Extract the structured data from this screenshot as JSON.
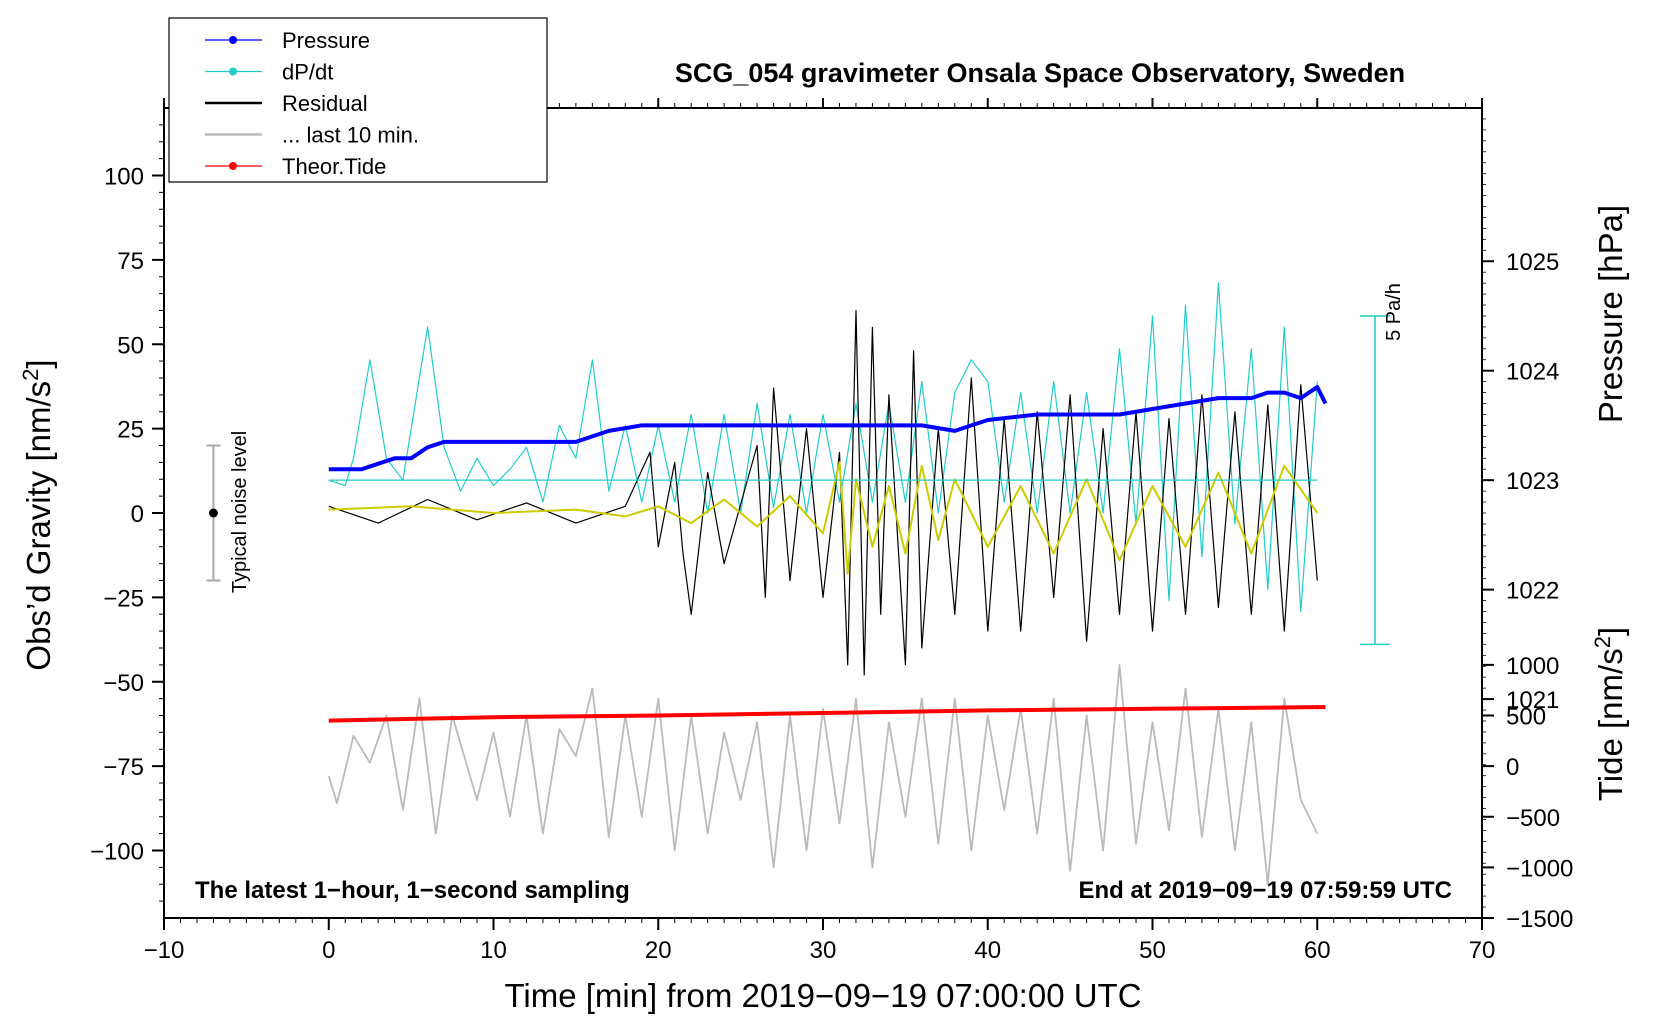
{
  "chart_data": {
    "type": "line",
    "title": "SCG_054 gravimeter Onsala Space Observatory, Sweden",
    "xlabel": "Time [min] from 2019−09−19 07:00:00 UTC",
    "ylabel_left_main": "Obs’d Gravity [nm/s",
    "ylabel_left_sup": "2",
    "ylabel_left_tail": "]",
    "ylabel_right_top": "Pressure [hPa]",
    "ylabel_right_bottom_main": "Tide [nm/s",
    "ylabel_right_bottom_sup": "2",
    "ylabel_right_bottom_tail": "]",
    "xlim": [
      -10,
      70
    ],
    "ylim": [
      -120,
      120
    ],
    "pressure_lim": [
      1019.0,
      1026.4
    ],
    "tide_lim": [
      -1500,
      6500
    ],
    "x_ticks": [
      -10,
      0,
      10,
      20,
      30,
      40,
      50,
      60,
      70
    ],
    "x_tick_labels": [
      "−10",
      "0",
      "10",
      "20",
      "30",
      "40",
      "50",
      "60",
      "70"
    ],
    "y_ticks": [
      100,
      75,
      50,
      25,
      0,
      -25,
      -50,
      -75,
      -100
    ],
    "y_tick_labels": [
      "100",
      "75",
      "50",
      "25",
      "0",
      "−25",
      "−50",
      "−75",
      "−100"
    ],
    "pressure_ticks": [
      1025,
      1024,
      1023,
      1022,
      1021
    ],
    "pressure_tick_labels": [
      "1025",
      "1024",
      "1023",
      "1022",
      "1021"
    ],
    "tide_ticks": [
      1000,
      500,
      0,
      -500,
      -1000,
      -1500
    ],
    "tide_tick_labels": [
      "1000",
      "500",
      "0",
      "−500",
      "−1000",
      "−1500"
    ],
    "legend": [
      {
        "label": "Pressure",
        "color": "#0000ff",
        "marker": true
      },
      {
        "label": "dP/dt",
        "color": "#22cccc",
        "marker": true
      },
      {
        "label": "Residual",
        "color": "#000000",
        "marker": false
      },
      {
        "label": "... last 10 min.",
        "color": "#bbbbbb",
        "marker": false
      },
      {
        "label": "Theor.Tide",
        "color": "#ff0000",
        "marker": true
      }
    ],
    "note_left": "The latest 1−hour, 1−second sampling",
    "note_right": "End at 2019−09−19 07:59:59 UTC",
    "noise_label": "Typical noise level",
    "noise_bar": {
      "x": -7,
      "center": 0,
      "half_range": 20
    },
    "dpdt_scale_label": "5 Pa/h",
    "dpdt_scale_range_hpa": [
      1021.5,
      1024.5
    ],
    "dpdt_baseline_hpa": 1023.0,
    "series": [
      {
        "name": "Pressure",
        "unit": "hPa",
        "color": "#0000ff",
        "x": [
          0,
          2,
          4,
          5,
          6,
          7,
          9,
          10,
          12,
          15,
          17,
          19,
          22,
          25,
          27,
          30,
          33,
          36,
          38,
          40,
          43,
          45,
          48,
          50,
          52,
          54,
          56,
          57,
          58,
          59,
          60,
          60.5
        ],
        "y": [
          1023.1,
          1023.1,
          1023.2,
          1023.2,
          1023.3,
          1023.35,
          1023.35,
          1023.35,
          1023.35,
          1023.35,
          1023.45,
          1023.5,
          1023.5,
          1023.5,
          1023.5,
          1023.5,
          1023.5,
          1023.5,
          1023.45,
          1023.55,
          1023.6,
          1023.6,
          1023.6,
          1023.65,
          1023.7,
          1023.75,
          1023.75,
          1023.8,
          1023.8,
          1023.75,
          1023.85,
          1023.7
        ]
      },
      {
        "name": "dP/dt",
        "unit": "hPa-scaled",
        "color": "#22cccc",
        "x": [
          0,
          1,
          1.5,
          2.5,
          3.5,
          4.5,
          6,
          7,
          8,
          9,
          10,
          11,
          12,
          13,
          14,
          15,
          16,
          17,
          18,
          19,
          20,
          21,
          22,
          23,
          24,
          25,
          26,
          27,
          28,
          29,
          30,
          31,
          32,
          33,
          34,
          35,
          36,
          37,
          38,
          39,
          40,
          41,
          42,
          43,
          44,
          45,
          46,
          47,
          48,
          49,
          50,
          51,
          52,
          53,
          54,
          55,
          56,
          57,
          58,
          59,
          60
        ],
        "y": [
          1023.0,
          1022.95,
          1023.2,
          1024.1,
          1023.2,
          1023.0,
          1024.4,
          1023.3,
          1022.9,
          1023.2,
          1022.95,
          1023.1,
          1023.3,
          1022.8,
          1023.5,
          1023.2,
          1024.1,
          1022.9,
          1023.5,
          1022.8,
          1023.5,
          1022.8,
          1023.6,
          1022.7,
          1023.6,
          1022.7,
          1023.7,
          1022.75,
          1023.6,
          1022.7,
          1023.6,
          1022.8,
          1023.7,
          1022.8,
          1023.7,
          1022.8,
          1023.9,
          1022.7,
          1023.8,
          1024.1,
          1023.9,
          1022.8,
          1023.8,
          1022.7,
          1023.9,
          1022.7,
          1023.8,
          1022.7,
          1024.2,
          1022.6,
          1024.5,
          1021.9,
          1024.6,
          1022.3,
          1024.8,
          1022.6,
          1024.2,
          1022.0,
          1024.4,
          1021.8,
          1023.9
        ]
      },
      {
        "name": "Residual",
        "unit": "nm/s2",
        "color": "#000000",
        "x": [
          0,
          3,
          6,
          9,
          12,
          15,
          18,
          19.5,
          20,
          21,
          21.5,
          22,
          23,
          24,
          26,
          26.5,
          27,
          28,
          29,
          30,
          31,
          31.5,
          32,
          32.5,
          33,
          33.5,
          34,
          35,
          35.5,
          36,
          37,
          38,
          39,
          40,
          41,
          42,
          43,
          44,
          45,
          46,
          47,
          48,
          49,
          50,
          51,
          52,
          53,
          54,
          55,
          56,
          57,
          58,
          59,
          60
        ],
        "y": [
          2,
          -3,
          4,
          -2,
          3,
          -3,
          2,
          18,
          -10,
          15,
          -12,
          -30,
          12,
          -15,
          20,
          -25,
          37,
          -20,
          25,
          -25,
          18,
          -45,
          60,
          -48,
          55,
          -30,
          35,
          -45,
          48,
          -40,
          25,
          -30,
          40,
          -35,
          28,
          -35,
          30,
          -25,
          35,
          -38,
          25,
          -30,
          30,
          -35,
          28,
          -30,
          35,
          -28,
          30,
          -30,
          32,
          -35,
          38,
          -20
        ]
      },
      {
        "name": "... last 10 min.",
        "unit": "nm/s2",
        "color": "#bbbbbb",
        "x": [
          0,
          0.5,
          1.5,
          2.5,
          3.5,
          4.5,
          5.5,
          6.5,
          7.5,
          9,
          10,
          11,
          12,
          13,
          14,
          15,
          16,
          17,
          18,
          19,
          20,
          21,
          22,
          23,
          24,
          25,
          26,
          27,
          28,
          29,
          30,
          31,
          32,
          33,
          34,
          35,
          36,
          37,
          38,
          39,
          40,
          41,
          42,
          43,
          44,
          45,
          46,
          47,
          48,
          49,
          50,
          51,
          52,
          53,
          54,
          55,
          56,
          57,
          58,
          59,
          60
        ],
        "y": [
          -78,
          -86,
          -66,
          -74,
          -60,
          -88,
          -55,
          -95,
          -60,
          -85,
          -65,
          -90,
          -60,
          -95,
          -64,
          -72,
          -52,
          -96,
          -60,
          -90,
          -55,
          -100,
          -60,
          -95,
          -65,
          -85,
          -62,
          -105,
          -60,
          -100,
          -58,
          -92,
          -55,
          -105,
          -62,
          -90,
          -55,
          -98,
          -55,
          -100,
          -60,
          -88,
          -58,
          -95,
          -55,
          -106,
          -60,
          -100,
          -45,
          -98,
          -62,
          -94,
          -52,
          -96,
          -58,
          -100,
          -62,
          -110,
          -55,
          -85,
          -95
        ]
      },
      {
        "name": "Theor.Tide",
        "unit": "nm/s2",
        "color": "#ff0000",
        "x": [
          0,
          10,
          20,
          30,
          40,
          50,
          60,
          60.5
        ],
        "y": [
          -60,
          -20,
          0,
          30,
          60,
          80,
          100,
          100
        ]
      },
      {
        "name": "Residual (smoothed)",
        "unit": "nm/s2",
        "color": "#cccc00",
        "x": [
          0,
          5,
          10,
          15,
          18,
          20,
          22,
          24,
          26,
          28,
          30,
          31,
          31.5,
          32,
          33,
          34,
          35,
          36,
          37,
          38,
          40,
          42,
          44,
          46,
          48,
          50,
          52,
          54,
          56,
          58,
          60
        ],
        "y": [
          1,
          2,
          0,
          1,
          -1,
          2,
          -3,
          4,
          -4,
          5,
          -6,
          15,
          -18,
          10,
          -10,
          8,
          -12,
          14,
          -8,
          10,
          -10,
          8,
          -12,
          10,
          -14,
          8,
          -10,
          12,
          -12,
          14,
          0
        ]
      }
    ]
  }
}
